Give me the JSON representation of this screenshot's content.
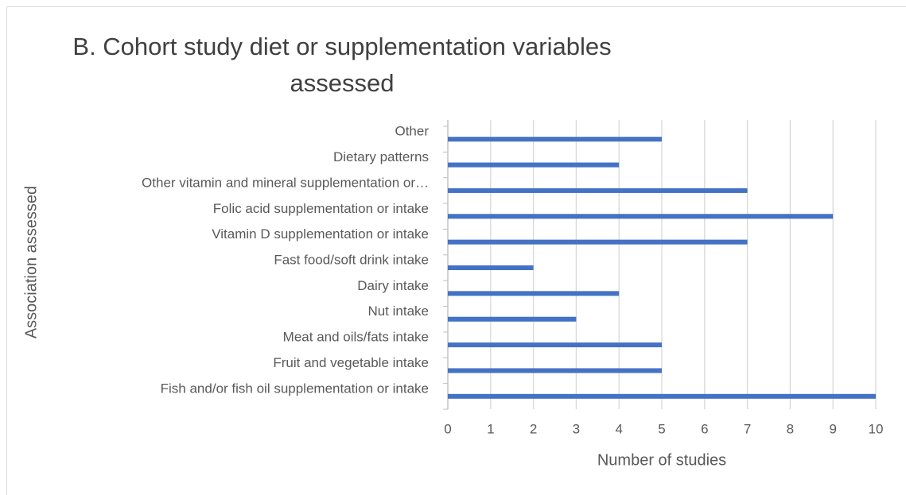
{
  "chart_data": {
    "type": "barh",
    "title": "B.  Cohort study diet or supplementation variables assessed",
    "xlabel": "Number of studies",
    "ylabel": "Association assessed",
    "categories": [
      "Fish and/or fish oil supplementation or intake",
      "Fruit and vegetable intake",
      "Meat and oils/fats intake",
      "Nut intake",
      "Dairy intake",
      "Fast food/soft drink intake",
      "Vitamin D supplementation or intake",
      "Folic acid supplementation or intake",
      "Other vitamin and mineral supplementation or…",
      "Dietary patterns",
      "Other"
    ],
    "values": [
      10,
      5,
      5,
      3,
      4,
      2,
      7,
      9,
      7,
      4,
      5
    ],
    "color": "#4472c4",
    "xlim": [
      0,
      10
    ],
    "xticks": [
      0,
      1,
      2,
      3,
      4,
      5,
      6,
      7,
      8,
      9,
      10
    ],
    "grid": true
  }
}
